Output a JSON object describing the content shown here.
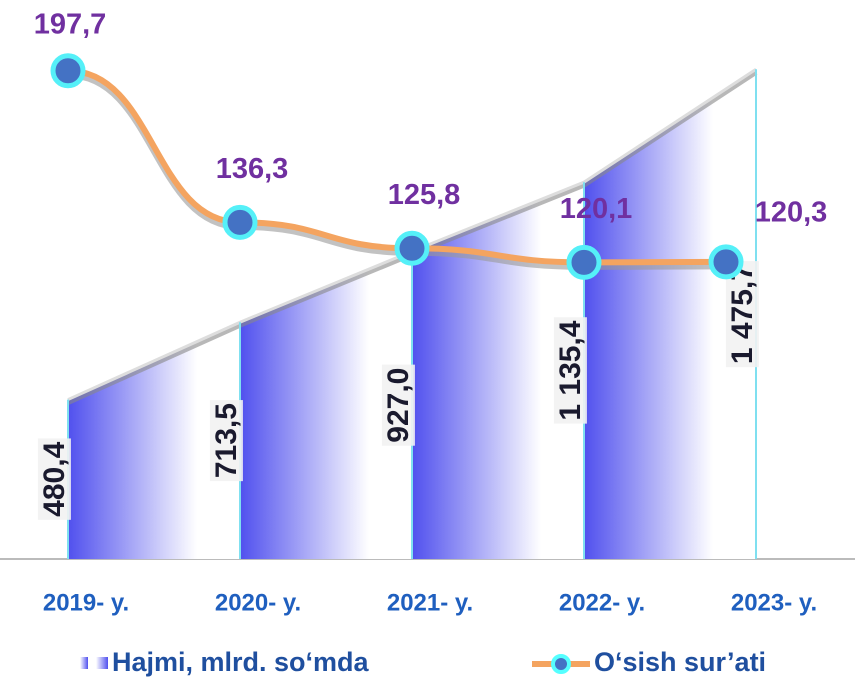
{
  "chart_data": {
    "type": "area-line",
    "categories": [
      "2019- y.",
      "2020- y.",
      "2021- y.",
      "2022- y.",
      "2023- y."
    ],
    "ylim": [
      0,
      1600
    ],
    "y2lim": [
      0,
      215
    ],
    "series": [
      {
        "name": "Hajmi, mlrd. so‘mda",
        "color": "#5a5af0",
        "values": [
          480.4,
          713.5,
          927.0,
          1135.4,
          1475.7
        ],
        "value_labels": [
          "480,4",
          "713,5",
          "927,0",
          "1 135,4",
          "1 475,7"
        ]
      },
      {
        "name": "O‘sish sur’ati",
        "color": "#f4a460",
        "axis": "y2",
        "values": [
          197.7,
          136.3,
          125.8,
          120.1,
          120.3
        ],
        "value_labels": [
          "197,7",
          "136,3",
          "125,8",
          "120,1",
          "120,3"
        ]
      }
    ]
  }
}
